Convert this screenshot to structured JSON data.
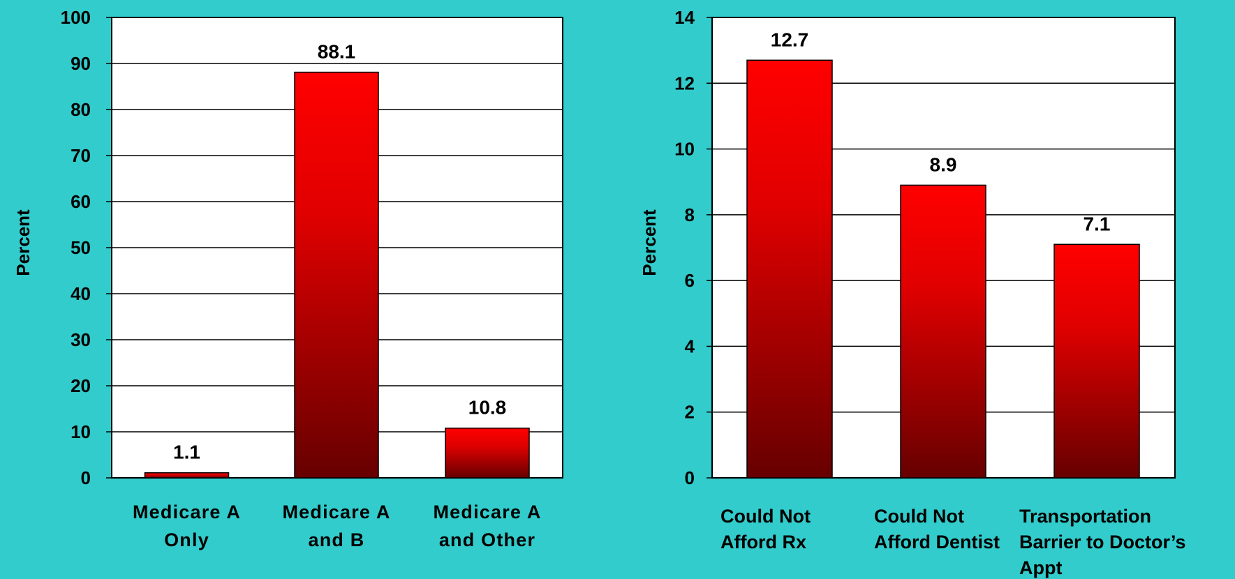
{
  "chart_data": [
    {
      "type": "bar",
      "title": "",
      "xlabel": "",
      "ylabel": "Percent",
      "ylim": [
        0,
        100
      ],
      "yticks": [
        0,
        10,
        20,
        30,
        40,
        50,
        60,
        70,
        80,
        90,
        100
      ],
      "grid": true,
      "categories": [
        [
          "Medicare A",
          "Only"
        ],
        [
          "Medicare A",
          "and B"
        ],
        [
          "Medicare A",
          "and Other"
        ]
      ],
      "values": [
        1.1,
        88.1,
        10.8
      ],
      "value_labels": [
        "1.1",
        "88.1",
        "10.8"
      ]
    },
    {
      "type": "bar",
      "title": "",
      "xlabel": "",
      "ylabel": "Percent",
      "ylim": [
        0,
        14
      ],
      "yticks": [
        0,
        2,
        4,
        6,
        8,
        10,
        12,
        14
      ],
      "grid": true,
      "categories": [
        [
          "Could Not",
          "Afford Rx"
        ],
        [
          "Could Not",
          "Afford Dentist"
        ],
        [
          "Transportation",
          "Barrier to Doctor’s",
          "Appt"
        ]
      ],
      "values": [
        12.7,
        8.9,
        7.1
      ],
      "value_labels": [
        "12.7",
        "8.9",
        "7.1"
      ]
    }
  ],
  "colors": {
    "background": "#33CCCC",
    "plot_area": "#FFFFFF",
    "bar_top": "#FF0000",
    "bar_bottom": "#660000",
    "text": "#000000"
  }
}
